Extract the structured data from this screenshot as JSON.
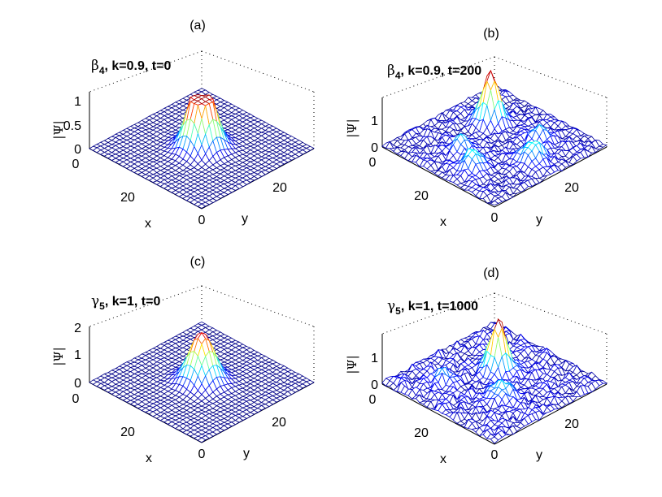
{
  "chart_data": [
    {
      "type": "surface",
      "panel_label": "(a)",
      "title": {
        "symbol": "β",
        "subscript": "4",
        "text": ", k=0.9, t=0"
      },
      "xlabel": "x",
      "ylabel": "y",
      "zlabel": "|Ψ|",
      "zticks": [
        "0",
        "0.5",
        "1"
      ],
      "xticks": [
        "0",
        "20"
      ],
      "yticks": [
        "0",
        "20"
      ],
      "zlim": [
        0,
        1.1
      ],
      "peak_height": 1.0,
      "noise": 0.02
    },
    {
      "type": "surface",
      "panel_label": "(b)",
      "title": {
        "symbol": "β",
        "subscript": "4",
        "text": ", k=0.9, t=200"
      },
      "xlabel": "x",
      "ylabel": "y",
      "zlabel": "|Ψ|",
      "zticks": [
        "0",
        "1"
      ],
      "xticks": [
        "0",
        "20"
      ],
      "yticks": [
        "0",
        "20"
      ],
      "zlim": [
        0,
        1.6
      ],
      "peak_height": 1.6,
      "noise": 0.18
    },
    {
      "type": "surface",
      "panel_label": "(c)",
      "title": {
        "symbol": "γ",
        "subscript": "5",
        "text": ", k=1, t=0"
      },
      "xlabel": "x",
      "ylabel": "y",
      "zlabel": "|Ψ|",
      "zticks": [
        "0",
        "1",
        "2"
      ],
      "xticks": [
        "0",
        "20"
      ],
      "yticks": [
        "0",
        "20"
      ],
      "zlim": [
        0,
        2
      ],
      "peak_height": 1.85,
      "noise": 0.04
    },
    {
      "type": "surface",
      "panel_label": "(d)",
      "title": {
        "symbol": "γ",
        "subscript": "5",
        "text": ", k=1, t=1000"
      },
      "xlabel": "x",
      "ylabel": "y",
      "zlabel": "|Ψ|",
      "zticks": [
        "0",
        "1"
      ],
      "xticks": [
        "0",
        "20"
      ],
      "yticks": [
        "0",
        "20"
      ],
      "zlim": [
        0,
        1.6
      ],
      "peak_height": 1.55,
      "noise": 0.22
    }
  ]
}
